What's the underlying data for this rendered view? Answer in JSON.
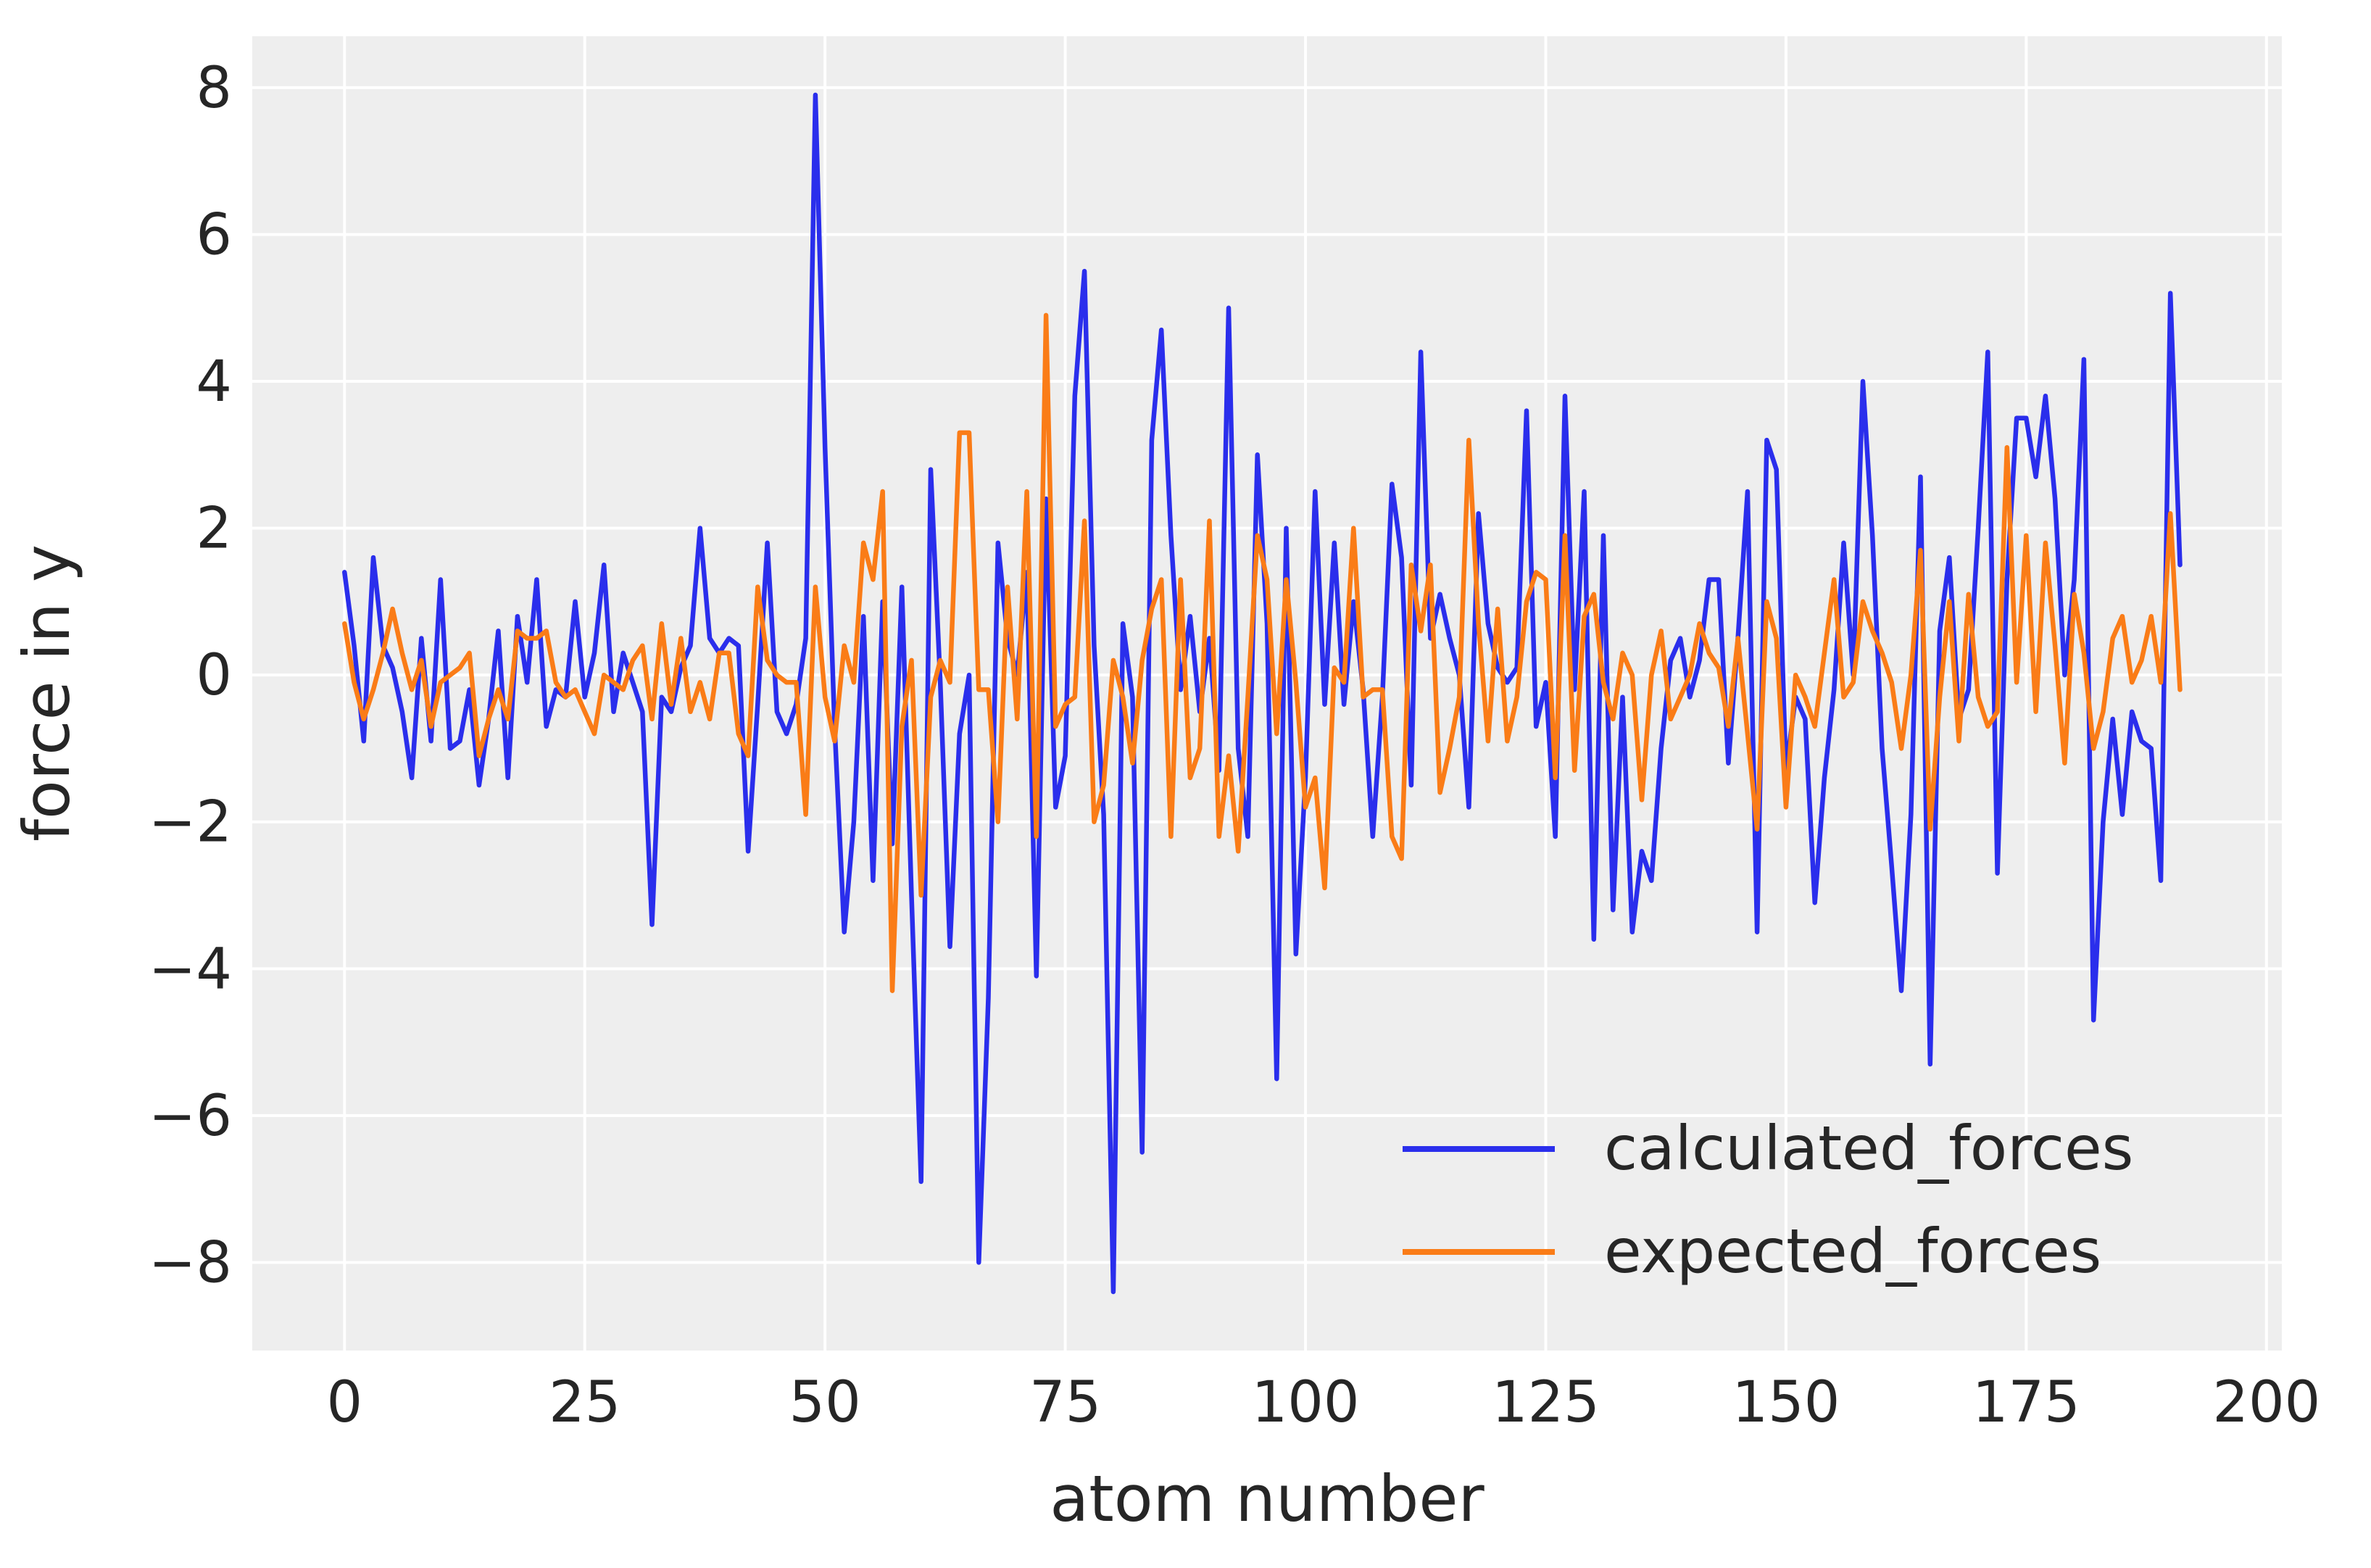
{
  "chart_data": {
    "type": "line",
    "title": "",
    "xlabel": "atom number",
    "ylabel": "force in y",
    "xlim": [
      -9.6,
      201.6
    ],
    "ylim": [
      -9.2,
      8.7
    ],
    "xticks": [
      0,
      25,
      50,
      75,
      100,
      125,
      150,
      175,
      200
    ],
    "yticks": [
      -8,
      -6,
      -4,
      -2,
      0,
      2,
      4,
      6,
      8
    ],
    "xtick_labels": [
      "0",
      "25",
      "50",
      "75",
      "100",
      "125",
      "150",
      "175",
      "200"
    ],
    "ytick_labels": [
      "−8",
      "−6",
      "−4",
      "−2",
      "0",
      "2",
      "4",
      "6",
      "8"
    ],
    "grid": true,
    "legend_position": "lower-right",
    "series": [
      {
        "name": "calculated_forces",
        "color": "#2a2eec",
        "x": [
          0,
          1,
          2,
          3,
          4,
          5,
          6,
          7,
          8,
          9,
          10,
          11,
          12,
          13,
          14,
          15,
          16,
          17,
          18,
          19,
          20,
          21,
          22,
          23,
          24,
          25,
          26,
          27,
          28,
          29,
          30,
          31,
          32,
          33,
          34,
          35,
          36,
          37,
          38,
          39,
          40,
          41,
          42,
          43,
          44,
          45,
          46,
          47,
          48,
          49,
          50,
          51,
          52,
          53,
          54,
          55,
          56,
          57,
          58,
          59,
          60,
          61,
          62,
          63,
          64,
          65,
          66,
          67,
          68,
          69,
          70,
          71,
          72,
          73,
          74,
          75,
          76,
          77,
          78,
          79,
          80,
          81,
          82,
          83,
          84,
          85,
          86,
          87,
          88,
          89,
          90,
          91,
          92,
          93,
          94,
          95,
          96,
          97,
          98,
          99,
          100,
          101,
          102,
          103,
          104,
          105,
          106,
          107,
          108,
          109,
          110,
          111,
          112,
          113,
          114,
          115,
          116,
          117,
          118,
          119,
          120,
          121,
          122,
          123,
          124,
          125,
          126,
          127,
          128,
          129,
          130,
          131,
          132,
          133,
          134,
          135,
          136,
          137,
          138,
          139,
          140,
          141,
          142,
          143,
          144,
          145,
          146,
          147,
          148,
          149,
          150,
          151,
          152,
          153,
          154,
          155,
          156,
          157,
          158,
          159,
          160,
          161,
          162,
          163,
          164,
          165,
          166,
          167,
          168,
          169,
          170,
          171,
          172,
          173,
          174,
          175,
          176,
          177,
          178,
          179,
          180,
          181,
          182,
          183,
          184,
          185,
          186,
          187,
          188,
          189,
          190,
          191
        ],
        "values": [
          1.4,
          0.4,
          -0.9,
          1.6,
          0.4,
          0.1,
          -0.5,
          -1.4,
          0.5,
          -0.9,
          1.3,
          -1.0,
          -0.9,
          -0.2,
          -1.5,
          -0.6,
          0.6,
          -1.4,
          0.8,
          -0.1,
          1.3,
          -0.7,
          -0.2,
          -0.3,
          1.0,
          -0.3,
          0.3,
          1.5,
          -0.5,
          0.3,
          -0.1,
          -0.5,
          -3.4,
          -0.3,
          -0.5,
          0.1,
          0.4,
          2.0,
          0.5,
          0.3,
          0.5,
          0.4,
          -2.4,
          -0.4,
          1.8,
          -0.5,
          -0.8,
          -0.4,
          0.5,
          7.9,
          3.1,
          -0.7,
          -3.5,
          -2.0,
          0.8,
          -2.8,
          1.0,
          -2.3,
          1.2,
          -3.0,
          -6.9,
          2.8,
          -0.1,
          -3.7,
          -0.8,
          0.0,
          -8.0,
          -4.4,
          1.8,
          0.5,
          0.0,
          1.4,
          -4.1,
          2.4,
          -1.8,
          -1.1,
          3.8,
          5.5,
          0.4,
          -1.9,
          -8.4,
          0.7,
          -0.3,
          -6.5,
          3.2,
          4.7,
          1.9,
          -0.2,
          0.8,
          -0.5,
          0.5,
          -1.3,
          5.0,
          -1.0,
          -2.2,
          3.0,
          0.7,
          -5.5,
          2.0,
          -3.8,
          -1.4,
          2.5,
          -0.4,
          1.8,
          -0.4,
          1.0,
          -0.2,
          -2.2,
          -0.3,
          2.6,
          1.6,
          -1.5,
          4.4,
          0.5,
          1.1,
          0.5,
          0.0,
          -1.8,
          2.2,
          0.7,
          0.1,
          -0.1,
          0.1,
          3.6,
          -0.7,
          -0.1,
          -2.2,
          3.8,
          -0.2,
          2.5,
          -3.6,
          1.9,
          -3.2,
          -0.3,
          -3.5,
          -2.4,
          -2.8,
          -1.0,
          0.2,
          0.5,
          -0.3,
          0.2,
          1.3,
          1.3,
          -1.2,
          0.5,
          2.5,
          -3.5,
          3.2,
          2.8,
          -1.3,
          -0.3,
          -0.6,
          -3.1,
          -1.4,
          -0.2,
          1.8,
          0.0,
          4.0,
          1.9,
          -1.0,
          -2.6,
          -4.3,
          -1.9,
          2.7,
          -5.3,
          0.6,
          1.6,
          -0.6,
          -0.2,
          2.0,
          4.4,
          -2.7,
          1.3,
          3.5,
          3.5,
          2.7,
          3.8,
          2.4,
          0.0,
          1.3,
          4.3,
          -4.7,
          -2.0,
          -0.6,
          -1.9,
          -0.5,
          -0.9,
          -1.0,
          -2.8,
          5.2,
          1.5
        ]
      },
      {
        "name": "expected_forces",
        "color": "#fa7c17",
        "x": [
          0,
          1,
          2,
          3,
          4,
          5,
          6,
          7,
          8,
          9,
          10,
          11,
          12,
          13,
          14,
          15,
          16,
          17,
          18,
          19,
          20,
          21,
          22,
          23,
          24,
          25,
          26,
          27,
          28,
          29,
          30,
          31,
          32,
          33,
          34,
          35,
          36,
          37,
          38,
          39,
          40,
          41,
          42,
          43,
          44,
          45,
          46,
          47,
          48,
          49,
          50,
          51,
          52,
          53,
          54,
          55,
          56,
          57,
          58,
          59,
          60,
          61,
          62,
          63,
          64,
          65,
          66,
          67,
          68,
          69,
          70,
          71,
          72,
          73,
          74,
          75,
          76,
          77,
          78,
          79,
          80,
          81,
          82,
          83,
          84,
          85,
          86,
          87,
          88,
          89,
          90,
          91,
          92,
          93,
          94,
          95,
          96,
          97,
          98,
          99,
          100,
          101,
          102,
          103,
          104,
          105,
          106,
          107,
          108,
          109,
          110,
          111,
          112,
          113,
          114,
          115,
          116,
          117,
          118,
          119,
          120,
          121,
          122,
          123,
          124,
          125,
          126,
          127,
          128,
          129,
          130,
          131,
          132,
          133,
          134,
          135,
          136,
          137,
          138,
          139,
          140,
          141,
          142,
          143,
          144,
          145,
          146,
          147,
          148,
          149,
          150,
          151,
          152,
          153,
          154,
          155,
          156,
          157,
          158,
          159,
          160,
          161,
          162,
          163,
          164,
          165,
          166,
          167,
          168,
          169,
          170,
          171,
          172,
          173,
          174,
          175,
          176,
          177,
          178,
          179,
          180,
          181,
          182,
          183,
          184,
          185,
          186,
          187,
          188,
          189,
          190,
          191
        ],
        "values": [
          0.7,
          -0.1,
          -0.6,
          -0.2,
          0.3,
          0.9,
          0.3,
          -0.2,
          0.2,
          -0.7,
          -0.1,
          0.0,
          0.1,
          0.3,
          -1.1,
          -0.6,
          -0.2,
          -0.6,
          0.6,
          0.5,
          0.5,
          0.6,
          -0.1,
          -0.3,
          -0.2,
          -0.5,
          -0.8,
          0.0,
          -0.1,
          -0.2,
          0.2,
          0.4,
          -0.6,
          0.7,
          -0.4,
          0.5,
          -0.5,
          -0.1,
          -0.6,
          0.3,
          0.3,
          -0.8,
          -1.1,
          1.2,
          0.2,
          0.0,
          -0.1,
          -0.1,
          -1.9,
          1.2,
          -0.3,
          -0.9,
          0.4,
          -0.1,
          1.8,
          1.3,
          2.5,
          -4.3,
          -0.7,
          0.2,
          -3.0,
          -0.3,
          0.2,
          -0.1,
          3.3,
          3.3,
          -0.2,
          -0.2,
          -2.0,
          1.2,
          -0.6,
          2.5,
          -2.2,
          4.9,
          -0.7,
          -0.4,
          -0.3,
          2.1,
          -2.0,
          -1.5,
          0.2,
          -0.3,
          -1.2,
          0.2,
          0.9,
          1.3,
          -2.2,
          1.3,
          -1.4,
          -1.0,
          2.1,
          -2.2,
          -1.1,
          -2.4,
          -0.3,
          1.9,
          1.3,
          -0.8,
          1.3,
          -0.1,
          -1.8,
          -1.4,
          -2.9,
          0.1,
          -0.1,
          2.0,
          -0.3,
          -0.2,
          -0.2,
          -2.2,
          -2.5,
          1.5,
          0.6,
          1.5,
          -1.6,
          -1.0,
          -0.3,
          3.2,
          0.7,
          -0.9,
          0.9,
          -0.9,
          -0.3,
          1.0,
          1.4,
          1.3,
          -1.4,
          1.9,
          -1.3,
          0.8,
          1.1,
          -0.1,
          -0.6,
          0.3,
          0.0,
          -1.7,
          0.0,
          0.6,
          -0.6,
          -0.3,
          0.0,
          0.7,
          0.3,
          0.1,
          -0.7,
          0.5,
          -0.8,
          -2.1,
          1.0,
          0.5,
          -1.8,
          0.0,
          -0.3,
          -0.7,
          0.3,
          1.3,
          -0.3,
          -0.1,
          1.0,
          0.6,
          0.3,
          -0.1,
          -1.0,
          0.0,
          1.7,
          -2.1,
          -0.3,
          1.0,
          -0.9,
          1.1,
          -0.3,
          -0.7,
          -0.5,
          3.1,
          -0.1,
          1.9,
          -0.5,
          1.8,
          0.4,
          -1.2,
          1.1,
          0.3,
          -1.0,
          -0.5,
          0.5,
          0.8,
          -0.1,
          0.2,
          0.8,
          -0.1,
          2.2,
          -0.2
        ]
      }
    ]
  }
}
